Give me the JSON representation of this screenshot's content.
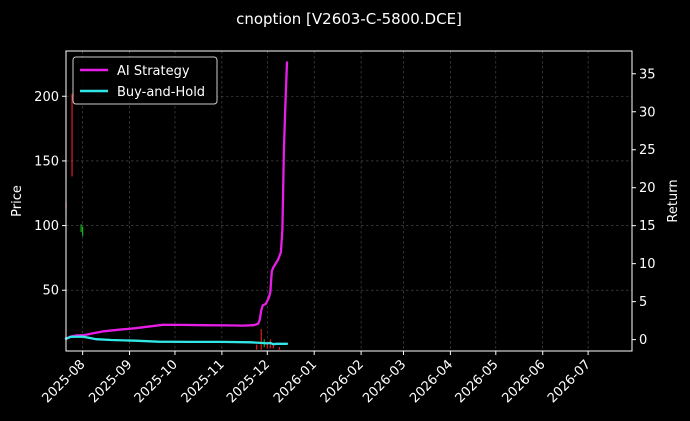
{
  "chart_data": {
    "type": "line",
    "title": "cnoption [V2603-C-5800.DCE]",
    "xlabel": "",
    "ylabel_left": "Price",
    "ylabel_right": "Return",
    "x_type": "date",
    "x_range": [
      "2025-07-21",
      "2026-07-30"
    ],
    "x_ticks": [
      "2025-08",
      "2025-09",
      "2025-10",
      "2025-11",
      "2025-12",
      "2026-01",
      "2026-02",
      "2026-03",
      "2026-04",
      "2026-05",
      "2026-06",
      "2026-07"
    ],
    "ylim_left": [
      3,
      235
    ],
    "yticks_left": [
      50,
      100,
      150,
      200
    ],
    "ylim_right": [
      -1.5,
      38
    ],
    "yticks_right": [
      0,
      5,
      10,
      15,
      20,
      25,
      30,
      35
    ],
    "grid": true,
    "legend_position": "top-left",
    "series": [
      {
        "name": "AI Strategy",
        "axis": "right",
        "color": "#e61ee6",
        "points": [
          [
            "2025-07-21",
            0.15
          ],
          [
            "2025-07-24",
            0.4
          ],
          [
            "2025-07-28",
            0.55
          ],
          [
            "2025-08-02",
            0.6
          ],
          [
            "2025-08-08",
            0.85
          ],
          [
            "2025-08-15",
            1.1
          ],
          [
            "2025-08-25",
            1.3
          ],
          [
            "2025-09-05",
            1.5
          ],
          [
            "2025-09-15",
            1.75
          ],
          [
            "2025-09-23",
            1.95
          ],
          [
            "2025-10-05",
            1.93
          ],
          [
            "2025-10-20",
            1.9
          ],
          [
            "2025-11-05",
            1.87
          ],
          [
            "2025-11-15",
            1.85
          ],
          [
            "2025-11-22",
            1.9
          ],
          [
            "2025-11-25",
            2.1
          ],
          [
            "2025-11-26",
            2.6
          ],
          [
            "2025-11-27",
            3.8
          ],
          [
            "2025-11-28",
            4.5
          ],
          [
            "2025-11-30",
            4.7
          ],
          [
            "2025-12-02",
            5.5
          ],
          [
            "2025-12-03",
            6.2
          ],
          [
            "2025-12-04",
            9.0
          ],
          [
            "2025-12-05",
            9.5
          ],
          [
            "2025-12-08",
            10.5
          ],
          [
            "2025-12-10",
            11.5
          ],
          [
            "2025-12-11",
            14.5
          ],
          [
            "2025-12-12",
            25.0
          ],
          [
            "2025-12-13",
            31.0
          ],
          [
            "2025-12-14",
            36.5
          ]
        ]
      },
      {
        "name": "Buy-and-Hold",
        "axis": "right",
        "color": "#33e6e6",
        "points": [
          [
            "2025-07-21",
            0.1
          ],
          [
            "2025-07-24",
            0.35
          ],
          [
            "2025-08-01",
            0.4
          ],
          [
            "2025-08-05",
            0.25
          ],
          [
            "2025-08-10",
            0.05
          ],
          [
            "2025-08-20",
            -0.05
          ],
          [
            "2025-09-05",
            -0.15
          ],
          [
            "2025-09-20",
            -0.28
          ],
          [
            "2025-10-10",
            -0.3
          ],
          [
            "2025-11-01",
            -0.3
          ],
          [
            "2025-11-20",
            -0.35
          ],
          [
            "2025-11-28",
            -0.45
          ],
          [
            "2025-12-01",
            -0.5
          ],
          [
            "2025-12-03",
            -0.45
          ],
          [
            "2025-12-05",
            -0.6
          ],
          [
            "2025-12-07",
            -0.55
          ],
          [
            "2025-12-14",
            -0.55
          ]
        ]
      }
    ],
    "price_bars": {
      "axis": "left",
      "up_color": "#19b219",
      "down_color": "#e61e1e",
      "bars": [
        {
          "date": "2025-07-21",
          "low": 113,
          "high": 118,
          "dir": "down"
        },
        {
          "date": "2025-07-25",
          "low": 138,
          "high": 202,
          "dir": "down"
        },
        {
          "date": "2025-07-31",
          "low": 95,
          "high": 101,
          "dir": "up"
        },
        {
          "date": "2025-08-01",
          "low": 92,
          "high": 99,
          "dir": "up"
        },
        {
          "date": "2025-11-24",
          "low": 4,
          "high": 8,
          "dir": "down"
        },
        {
          "date": "2025-11-27",
          "low": 4,
          "high": 20,
          "dir": "down"
        },
        {
          "date": "2025-11-29",
          "low": 6,
          "high": 12,
          "dir": "up"
        },
        {
          "date": "2025-12-01",
          "low": 5,
          "high": 10,
          "dir": "down"
        },
        {
          "date": "2025-12-03",
          "low": 5,
          "high": 12,
          "dir": "down"
        },
        {
          "date": "2025-12-05",
          "low": 5,
          "high": 9,
          "dir": "down"
        },
        {
          "date": "2025-12-09",
          "low": 4,
          "high": 6,
          "dir": "down"
        }
      ]
    }
  }
}
